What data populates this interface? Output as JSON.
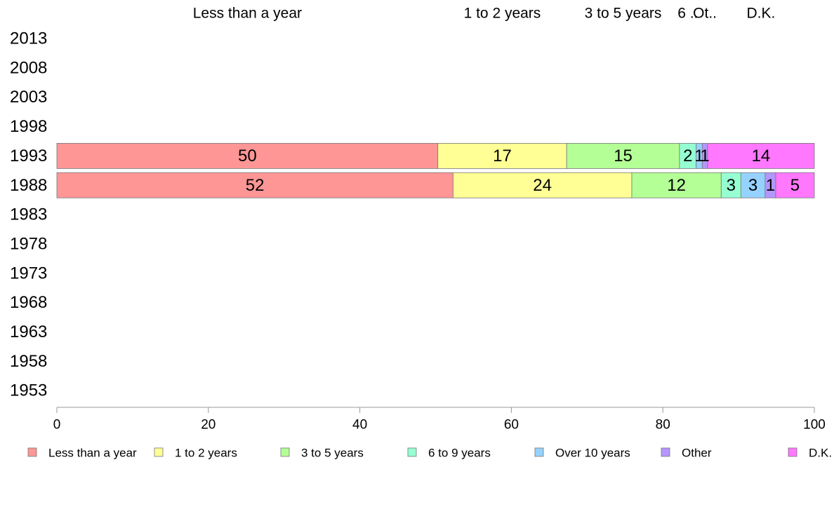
{
  "chart_data": {
    "type": "bar",
    "orientation": "horizontal",
    "stacked": true,
    "categories": [
      "2013",
      "2008",
      "2003",
      "1998",
      "1993",
      "1988",
      "1983",
      "1978",
      "1973",
      "1968",
      "1963",
      "1958",
      "1953"
    ],
    "series": [
      {
        "name": "Less than a year",
        "color": "#FF9696",
        "values": [
          null,
          null,
          null,
          null,
          50.3,
          52.3,
          null,
          null,
          null,
          null,
          null,
          null,
          null
        ],
        "labels": [
          "",
          "",
          "",
          "",
          "50",
          "52",
          "",
          "",
          "",
          "",
          "",
          "",
          ""
        ]
      },
      {
        "name": "1 to 2 years",
        "color": "#FFFF96",
        "values": [
          null,
          null,
          null,
          null,
          17.0,
          23.6,
          null,
          null,
          null,
          null,
          null,
          null,
          null
        ],
        "labels": [
          "",
          "",
          "",
          "",
          "17",
          "24",
          "",
          "",
          "",
          "",
          "",
          "",
          ""
        ]
      },
      {
        "name": "3 to 5 years",
        "color": "#B4FF96",
        "values": [
          null,
          null,
          null,
          null,
          14.9,
          11.8,
          null,
          null,
          null,
          null,
          null,
          null,
          null
        ],
        "labels": [
          "",
          "",
          "",
          "",
          "15",
          "12",
          "",
          "",
          "",
          "",
          "",
          "",
          ""
        ]
      },
      {
        "name": "6 to 9 years",
        "color": "#96FFD2",
        "values": [
          null,
          null,
          null,
          null,
          2.2,
          2.6,
          null,
          null,
          null,
          null,
          null,
          null,
          null
        ],
        "labels": [
          "",
          "",
          "",
          "",
          "2",
          "3",
          "",
          "",
          "",
          "",
          "",
          "",
          ""
        ]
      },
      {
        "name": "Over 10 years",
        "color": "#96D2FF",
        "values": [
          null,
          null,
          null,
          null,
          0.8,
          3.2,
          null,
          null,
          null,
          null,
          null,
          null,
          null
        ],
        "labels": [
          "",
          "",
          "",
          "",
          "1",
          "3",
          "",
          "",
          "",
          "",
          "",
          "",
          ""
        ]
      },
      {
        "name": "Other",
        "color": "#B496FF",
        "values": [
          null,
          null,
          null,
          null,
          0.7,
          1.4,
          null,
          null,
          null,
          null,
          null,
          null,
          null
        ],
        "labels": [
          "",
          "",
          "",
          "",
          "1",
          "1",
          "",
          "",
          "",
          "",
          "",
          "",
          ""
        ]
      },
      {
        "name": "D.K.",
        "color": "#FF78FF",
        "values": [
          null,
          null,
          null,
          null,
          14.1,
          5.1,
          null,
          null,
          null,
          null,
          null,
          null,
          null
        ],
        "labels": [
          "",
          "",
          "",
          "",
          "14",
          "5",
          "",
          "",
          "",
          "",
          "",
          "",
          ""
        ]
      }
    ],
    "top_labels": [
      "Less than a year",
      "1 to 2 years",
      "3 to 5 years",
      "6 ..",
      "Ot..",
      "D.K."
    ],
    "xlim": [
      0,
      100
    ],
    "xticks": [
      "0",
      "20",
      "40",
      "60",
      "80",
      "100"
    ],
    "legend_position": "bottom",
    "grid": false
  }
}
